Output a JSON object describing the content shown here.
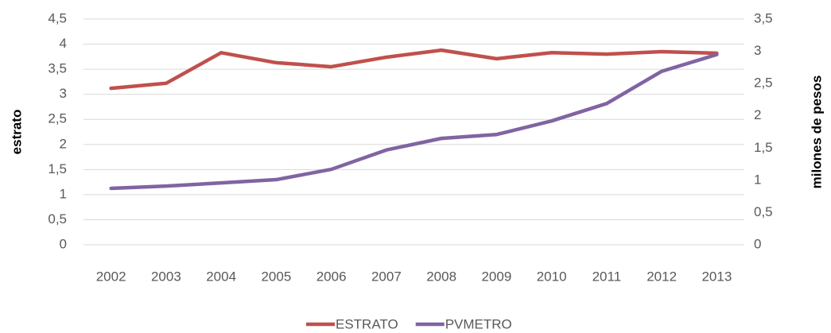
{
  "chart_data": {
    "type": "line",
    "categories": [
      "2002",
      "2003",
      "2004",
      "2005",
      "2006",
      "2007",
      "2008",
      "2009",
      "2010",
      "2011",
      "2012",
      "2013"
    ],
    "y_label": "estrato",
    "y2_label": "milones de pesos",
    "series": [
      {
        "name": "ESTRATO",
        "color": "#c0504d",
        "values": [
          3.12,
          3.22,
          3.83,
          3.63,
          3.55,
          3.74,
          3.88,
          3.71,
          3.83,
          3.8,
          3.85,
          3.82
        ]
      },
      {
        "name": "PVMETRO",
        "color": "#8064a2",
        "axis": "y2",
        "values": [
          0.875,
          0.91,
          0.96,
          1.01,
          1.17,
          1.47,
          1.65,
          1.71,
          1.92,
          2.19,
          2.69,
          2.95
        ]
      }
    ],
    "ylim": [
      0,
      4.5
    ],
    "yticks": [
      0,
      {
        "value": 0.5,
        "label": "0,5"
      },
      1,
      {
        "value": 1.5,
        "label": "1,5"
      },
      2,
      {
        "value": 2.5,
        "label": "2,5"
      },
      3,
      {
        "value": 3.5,
        "label": "3,5"
      },
      4,
      {
        "value": 4.5,
        "label": "4,5"
      }
    ],
    "y2lim": [
      0,
      3.5
    ],
    "y2ticks": [
      0,
      {
        "value": 0.5,
        "label": "0,5"
      },
      1,
      {
        "value": 1.5,
        "label": "1,5"
      },
      2,
      {
        "value": 2.5,
        "label": "2,5"
      },
      3,
      {
        "value": 3.5,
        "label": "3,5"
      }
    ],
    "grid": true,
    "legend": "bottom"
  }
}
